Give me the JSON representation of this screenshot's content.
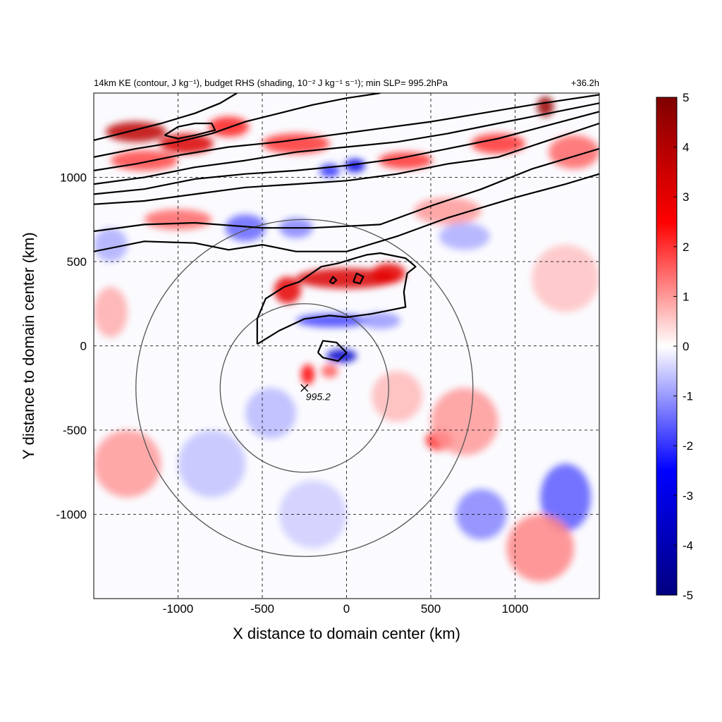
{
  "chart_data": {
    "type": "heatmap",
    "title_left": "14km KE (contour, J kg⁻¹), budget RHS (shading, 10⁻² J kg⁻¹ s⁻¹); min SLP= 995.2hPa",
    "title_right": "+36.2h",
    "xlabel": "X distance to domain center (km)",
    "ylabel": "Y distance to domain center (km)",
    "xlim": [
      -1500,
      1500
    ],
    "ylim": [
      -1500,
      1500
    ],
    "x_ticks": [
      -1000,
      -500,
      0,
      500,
      1000
    ],
    "y_ticks": [
      -1000,
      -500,
      0,
      500,
      1000
    ],
    "x_tick_labels": [
      "-1000",
      "-500",
      "0",
      "500",
      "1000"
    ],
    "y_tick_labels": [
      "-1000",
      "-500",
      "0",
      "500",
      "1000"
    ],
    "grid": "dashed",
    "colorbar": {
      "range": [
        -5,
        5
      ],
      "ticks": [
        5,
        4,
        3,
        2,
        1,
        0,
        -1,
        -2,
        -3,
        -4,
        -5
      ],
      "tick_labels": [
        "5",
        "4",
        "3",
        "2",
        "1",
        "0",
        "-1",
        "-2",
        "-3",
        "-4",
        "-5"
      ],
      "colors": [
        "#000080",
        "#0000ff",
        "#ffffff",
        "#ff0000",
        "#800000"
      ]
    },
    "storm_center": {
      "x": -250,
      "y": -250,
      "label": "995.2",
      "min_slp_hpa": 995.2
    },
    "range_rings_km": [
      500,
      1000
    ],
    "shading_features": [
      {
        "x": 0,
        "y": 400,
        "value": 3.2,
        "sx": 300,
        "sy": 60,
        "note": ""
      },
      {
        "x": -350,
        "y": 330,
        "value": 3.0,
        "sx": 80,
        "sy": 80
      },
      {
        "x": 250,
        "y": 430,
        "value": 3.0,
        "sx": 100,
        "sy": 60
      },
      {
        "x": -80,
        "y": 150,
        "value": -1.8,
        "sx": 220,
        "sy": 40
      },
      {
        "x": 200,
        "y": 150,
        "value": -1.0,
        "sx": 120,
        "sy": 50
      },
      {
        "x": -30,
        "y": -60,
        "value": -3.5,
        "sx": 90,
        "sy": 40
      },
      {
        "x": -230,
        "y": -170,
        "value": 2.5,
        "sx": 40,
        "sy": 60
      },
      {
        "x": -100,
        "y": -150,
        "value": 1.6,
        "sx": 50,
        "sy": 40
      },
      {
        "x": -1250,
        "y": 1270,
        "value": 3.8,
        "sx": 180,
        "sy": 60
      },
      {
        "x": -950,
        "y": 1200,
        "value": 3.2,
        "sx": 160,
        "sy": 60
      },
      {
        "x": -1200,
        "y": 1100,
        "value": 1.8,
        "sx": 200,
        "sy": 60
      },
      {
        "x": -700,
        "y": 1300,
        "value": 2.2,
        "sx": 120,
        "sy": 60
      },
      {
        "x": -300,
        "y": 1200,
        "value": 2.0,
        "sx": 200,
        "sy": 60
      },
      {
        "x": 50,
        "y": 1070,
        "value": -3.0,
        "sx": 60,
        "sy": 40
      },
      {
        "x": -100,
        "y": 1040,
        "value": -2.0,
        "sx": 60,
        "sy": 40
      },
      {
        "x": 350,
        "y": 1100,
        "value": 2.0,
        "sx": 160,
        "sy": 50
      },
      {
        "x": 900,
        "y": 1200,
        "value": 2.0,
        "sx": 160,
        "sy": 60
      },
      {
        "x": 1180,
        "y": 1420,
        "value": 4.5,
        "sx": 50,
        "sy": 60
      },
      {
        "x": 1350,
        "y": 1150,
        "value": 1.5,
        "sx": 150,
        "sy": 100
      },
      {
        "x": -1000,
        "y": 750,
        "value": 1.5,
        "sx": 200,
        "sy": 60
      },
      {
        "x": -600,
        "y": 700,
        "value": -1.5,
        "sx": 120,
        "sy": 80
      },
      {
        "x": -300,
        "y": 700,
        "value": -1.2,
        "sx": 100,
        "sy": 60
      },
      {
        "x": 600,
        "y": 800,
        "value": 1.0,
        "sx": 200,
        "sy": 80
      },
      {
        "x": 700,
        "y": 650,
        "value": -0.8,
        "sx": 150,
        "sy": 80
      },
      {
        "x": 550,
        "y": -560,
        "value": 2.2,
        "sx": 80,
        "sy": 60
      },
      {
        "x": 700,
        "y": -450,
        "value": 1.0,
        "sx": 200,
        "sy": 200
      },
      {
        "x": 1300,
        "y": -900,
        "value": -1.6,
        "sx": 150,
        "sy": 200
      },
      {
        "x": 1150,
        "y": -1200,
        "value": 1.2,
        "sx": 200,
        "sy": 200
      },
      {
        "x": 800,
        "y": -1000,
        "value": -1.2,
        "sx": 150,
        "sy": 150
      },
      {
        "x": -1300,
        "y": -700,
        "value": 1.0,
        "sx": 200,
        "sy": 200
      },
      {
        "x": -800,
        "y": -700,
        "value": -0.6,
        "sx": 200,
        "sy": 200
      },
      {
        "x": -200,
        "y": -1000,
        "value": -0.5,
        "sx": 200,
        "sy": 200
      },
      {
        "x": -1400,
        "y": 200,
        "value": 0.8,
        "sx": 100,
        "sy": 150
      },
      {
        "x": -1400,
        "y": 600,
        "value": -0.8,
        "sx": 100,
        "sy": 100
      },
      {
        "x": 1300,
        "y": 400,
        "value": 0.6,
        "sx": 200,
        "sy": 200
      },
      {
        "x": 300,
        "y": -300,
        "value": 0.7,
        "sx": 150,
        "sy": 150
      },
      {
        "x": -450,
        "y": -400,
        "value": -0.7,
        "sx": 150,
        "sy": 150
      }
    ],
    "ke_contours": [
      [
        [
          -1500,
          560
        ],
        [
          -1200,
          620
        ],
        [
          -900,
          610
        ],
        [
          -700,
          570
        ],
        [
          -500,
          600
        ],
        [
          -300,
          560
        ],
        [
          0,
          560
        ],
        [
          300,
          650
        ],
        [
          600,
          760
        ],
        [
          1000,
          880
        ],
        [
          1300,
          960
        ],
        [
          1500,
          1020
        ]
      ],
      [
        [
          -1500,
          680
        ],
        [
          -1200,
          720
        ],
        [
          -900,
          730
        ],
        [
          -500,
          700
        ],
        [
          -200,
          700
        ],
        [
          200,
          720
        ],
        [
          500,
          830
        ],
        [
          800,
          930
        ],
        [
          1100,
          1050
        ],
        [
          1500,
          1170
        ]
      ],
      [
        [
          -1500,
          840
        ],
        [
          -1200,
          860
        ],
        [
          -900,
          900
        ],
        [
          -600,
          940
        ],
        [
          -300,
          960
        ],
        [
          0,
          980
        ],
        [
          300,
          1020
        ],
        [
          600,
          1080
        ],
        [
          900,
          1120
        ],
        [
          1200,
          1220
        ],
        [
          1500,
          1320
        ]
      ],
      [
        [
          -1500,
          900
        ],
        [
          -1200,
          930
        ],
        [
          -900,
          990
        ],
        [
          -600,
          1020
        ],
        [
          -300,
          1040
        ],
        [
          0,
          1070
        ],
        [
          300,
          1110
        ],
        [
          600,
          1170
        ],
        [
          900,
          1230
        ],
        [
          1200,
          1310
        ],
        [
          1500,
          1390
        ]
      ],
      [
        [
          -1500,
          960
        ],
        [
          -1200,
          1000
        ],
        [
          -900,
          1060
        ],
        [
          -600,
          1100
        ],
        [
          -300,
          1150
        ],
        [
          0,
          1180
        ],
        [
          300,
          1210
        ],
        [
          600,
          1260
        ],
        [
          900,
          1320
        ],
        [
          1200,
          1380
        ],
        [
          1500,
          1440
        ]
      ],
      [
        [
          -1500,
          1040
        ],
        [
          -1250,
          1080
        ],
        [
          -1000,
          1130
        ],
        [
          -700,
          1180
        ],
        [
          -400,
          1210
        ],
        [
          -100,
          1250
        ],
        [
          200,
          1290
        ],
        [
          500,
          1330
        ],
        [
          800,
          1380
        ],
        [
          1100,
          1430
        ],
        [
          1500,
          1490
        ]
      ],
      [
        [
          -1500,
          1120
        ],
        [
          -1250,
          1170
        ],
        [
          -1000,
          1210
        ],
        [
          -800,
          1260
        ],
        [
          -600,
          1330
        ],
        [
          -400,
          1380
        ],
        [
          -200,
          1430
        ],
        [
          0,
          1470
        ],
        [
          200,
          1500
        ]
      ],
      [
        [
          -1500,
          1220
        ],
        [
          -1300,
          1270
        ],
        [
          -1100,
          1320
        ],
        [
          -900,
          1380
        ],
        [
          -750,
          1440
        ],
        [
          -650,
          1500
        ]
      ],
      [
        [
          -1080,
          1250
        ],
        [
          -1000,
          1300
        ],
        [
          -900,
          1320
        ],
        [
          -800,
          1320
        ],
        [
          -780,
          1280
        ],
        [
          -900,
          1250
        ],
        [
          -1000,
          1230
        ],
        [
          -1080,
          1250
        ]
      ],
      [
        [
          -530,
          10
        ],
        [
          -400,
          90
        ],
        [
          -250,
          160
        ],
        [
          -100,
          180
        ],
        [
          0,
          170
        ],
        [
          150,
          190
        ],
        [
          250,
          210
        ],
        [
          350,
          230
        ],
        [
          340,
          320
        ],
        [
          360,
          430
        ],
        [
          410,
          470
        ],
        [
          350,
          520
        ],
        [
          200,
          550
        ],
        [
          120,
          540
        ],
        [
          50,
          520
        ],
        [
          -50,
          490
        ],
        [
          -150,
          470
        ],
        [
          -280,
          380
        ],
        [
          -370,
          350
        ],
        [
          -480,
          280
        ],
        [
          -530,
          160
        ],
        [
          -530,
          10
        ]
      ],
      [
        [
          -170,
          -40
        ],
        [
          -140,
          30
        ],
        [
          -60,
          20
        ],
        [
          0,
          -40
        ],
        [
          -50,
          -90
        ],
        [
          -140,
          -70
        ],
        [
          -170,
          -40
        ]
      ],
      [
        [
          40,
          380
        ],
        [
          60,
          430
        ],
        [
          100,
          410
        ],
        [
          80,
          370
        ],
        [
          40,
          380
        ]
      ],
      [
        [
          -100,
          380
        ],
        [
          -80,
          410
        ],
        [
          -60,
          390
        ],
        [
          -80,
          370
        ],
        [
          -100,
          380
        ]
      ]
    ]
  }
}
